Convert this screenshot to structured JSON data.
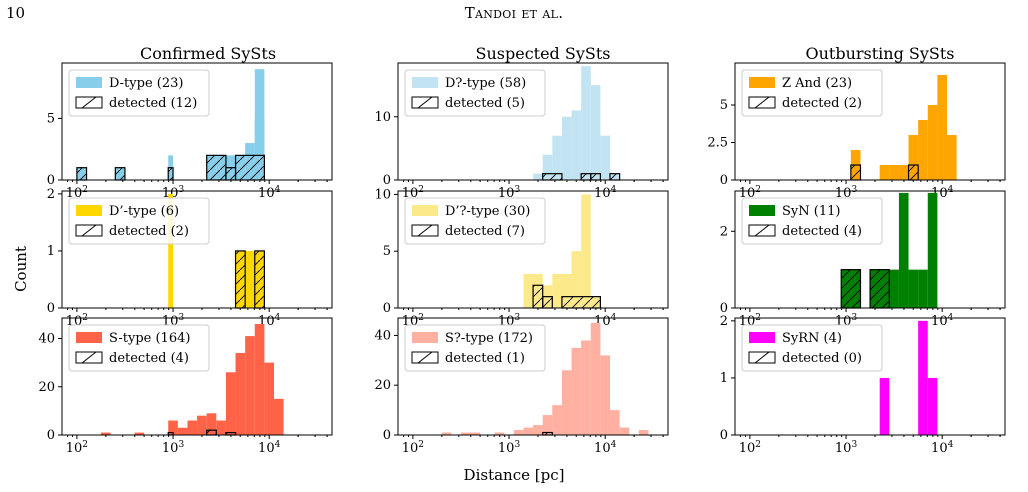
{
  "header": {
    "page_number": "10",
    "running_title": "Tandoi et al."
  },
  "figure": {
    "column_titles": [
      "Confirmed SySts",
      "Suspected SySts",
      "Outbursting SySts"
    ],
    "y_label": "Count",
    "x_label": "Distance [pc]"
  },
  "chart_data": [
    {
      "type": "bar",
      "panel": "Confirmed SySts / row 1",
      "xscale": "log",
      "xlim": [
        70,
        45000
      ],
      "ylim": [
        0,
        9.5
      ],
      "yticks": [
        0,
        5
      ],
      "xticks": [
        100,
        1000,
        10000
      ],
      "series": [
        {
          "name": "D-type (23)",
          "color": "#87ceeb",
          "bins": [
            [
              100,
              126,
              1
            ],
            [
              251,
              316,
              1
            ],
            [
              891,
              1000,
              1
            ],
            [
              891,
              1000,
              2
            ],
            [
              2239,
              2818,
              2
            ],
            [
              2818,
              3548,
              2
            ],
            [
              3548,
              4467,
              2
            ],
            [
              4467,
              5623,
              2
            ],
            [
              5623,
              7079,
              3
            ],
            [
              7079,
              8913,
              5
            ],
            [
              7079,
              8913,
              9
            ]
          ]
        },
        {
          "name": "detected (12)",
          "color": "none",
          "hatch": true,
          "bins": [
            [
              100,
              126,
              1
            ],
            [
              251,
              316,
              1
            ],
            [
              891,
              1000,
              1
            ],
            [
              2239,
              3548,
              2
            ],
            [
              3548,
              4467,
              1
            ],
            [
              4467,
              8913,
              2
            ]
          ]
        }
      ]
    },
    {
      "type": "bar",
      "panel": "Suspected SySts / row 1",
      "xscale": "log",
      "xlim": [
        70,
        45000
      ],
      "ylim": [
        0,
        18.5
      ],
      "yticks": [
        0,
        10
      ],
      "xticks": [
        100,
        1000,
        10000
      ],
      "series": [
        {
          "name": "D?-type (58)",
          "color": "#c2e4f2",
          "bins": [
            [
              1778,
              2239,
              1
            ],
            [
              2239,
              2818,
              4
            ],
            [
              2818,
              3548,
              7
            ],
            [
              3548,
              4467,
              10
            ],
            [
              4467,
              5623,
              11
            ],
            [
              5623,
              7079,
              18
            ],
            [
              7079,
              8913,
              15
            ],
            [
              8913,
              11220,
              7
            ],
            [
              11220,
              14125,
              1
            ]
          ]
        },
        {
          "name": "detected (5)",
          "color": "none",
          "hatch": true,
          "bins": [
            [
              2239,
              3548,
              1
            ],
            [
              5623,
              7079,
              1
            ],
            [
              7079,
              8913,
              1
            ],
            [
              11220,
              14125,
              1
            ]
          ]
        }
      ]
    },
    {
      "type": "bar",
      "panel": "Outbursting SySts / row 1",
      "xscale": "log",
      "xlim": [
        70,
        45000
      ],
      "ylim": [
        0,
        7.8
      ],
      "yticks": [
        0.0,
        2.5,
        5.0
      ],
      "xticks": [
        100,
        1000,
        10000
      ],
      "series": [
        {
          "name": "Z And (23)",
          "color": "#ffa500",
          "bins": [
            [
              1122,
              1413,
              2
            ],
            [
              2239,
              2818,
              1
            ],
            [
              2818,
              3548,
              1
            ],
            [
              3548,
              4467,
              1
            ],
            [
              4467,
              5623,
              3
            ],
            [
              5623,
              7079,
              4
            ],
            [
              7079,
              8913,
              5
            ],
            [
              8913,
              11220,
              7
            ],
            [
              11220,
              14125,
              3
            ]
          ]
        },
        {
          "name": "detected (2)",
          "color": "none",
          "hatch": true,
          "bins": [
            [
              1122,
              1413,
              1
            ],
            [
              4467,
              5623,
              1
            ]
          ]
        }
      ]
    },
    {
      "type": "bar",
      "panel": "Confirmed SySts / row 2",
      "xscale": "log",
      "xlim": [
        70,
        45000
      ],
      "ylim": [
        0,
        2.05
      ],
      "yticks": [
        0,
        1,
        2
      ],
      "xticks": [
        100,
        1000,
        10000
      ],
      "series": [
        {
          "name": "D’-type (6)",
          "color": "#ffd700",
          "bins": [
            [
              891,
              1000,
              2
            ],
            [
              4467,
              5623,
              1
            ],
            [
              5623,
              7079,
              1
            ],
            [
              7079,
              8913,
              1
            ]
          ]
        },
        {
          "name": "detected (2)",
          "color": "none",
          "hatch": true,
          "bins": [
            [
              4467,
              5623,
              1
            ],
            [
              7079,
              8913,
              1
            ]
          ]
        }
      ]
    },
    {
      "type": "bar",
      "panel": "Suspected SySts / row 2",
      "xscale": "log",
      "xlim": [
        70,
        45000
      ],
      "ylim": [
        0,
        10.3
      ],
      "yticks": [
        0,
        5,
        10
      ],
      "xticks": [
        100,
        1000,
        10000
      ],
      "series": [
        {
          "name": "D’?-type (30)",
          "color": "#fce98a",
          "bins": [
            [
              1413,
              1778,
              3
            ],
            [
              1778,
              2239,
              3
            ],
            [
              2239,
              2818,
              2
            ],
            [
              2818,
              3548,
              3
            ],
            [
              3548,
              4467,
              3
            ],
            [
              4467,
              5623,
              5
            ],
            [
              5623,
              7079,
              10
            ],
            [
              7079,
              8913,
              1
            ]
          ]
        },
        {
          "name": "detected (7)",
          "color": "none",
          "hatch": true,
          "bins": [
            [
              1778,
              2239,
              2
            ],
            [
              2239,
              2818,
              1
            ],
            [
              3548,
              8913,
              1
            ]
          ]
        }
      ]
    },
    {
      "type": "bar",
      "panel": "Outbursting SySts / row 2",
      "xscale": "log",
      "xlim": [
        70,
        45000
      ],
      "ylim": [
        0,
        3.05
      ],
      "yticks": [
        0,
        2
      ],
      "xticks": [
        100,
        1000,
        10000
      ],
      "series": [
        {
          "name": "SyN (11)",
          "color": "#008000",
          "bins": [
            [
              891,
              1413,
              1
            ],
            [
              1778,
              2818,
              1
            ],
            [
              2818,
              3548,
              1
            ],
            [
              3548,
              4467,
              3
            ],
            [
              4467,
              5623,
              1
            ],
            [
              5623,
              7079,
              1
            ],
            [
              7079,
              8913,
              3
            ]
          ]
        },
        {
          "name": "detected (4)",
          "color": "none",
          "hatch": true,
          "bins": [
            [
              891,
              1413,
              1
            ],
            [
              1778,
              2818,
              1
            ]
          ]
        }
      ]
    },
    {
      "type": "bar",
      "panel": "Confirmed SySts / row 3",
      "xscale": "log",
      "xlim": [
        70,
        45000
      ],
      "ylim": [
        0,
        48.5
      ],
      "yticks": [
        0,
        20,
        40
      ],
      "xticks": [
        100,
        1000,
        10000
      ],
      "series": [
        {
          "name": "S-type (164)",
          "color": "#ff6347",
          "bins": [
            [
              178,
              224,
              1
            ],
            [
              398,
              501,
              1
            ],
            [
              891,
              1122,
              6
            ],
            [
              1122,
              1413,
              3
            ],
            [
              1413,
              1778,
              6
            ],
            [
              1778,
              2239,
              8
            ],
            [
              2239,
              2818,
              9
            ],
            [
              2818,
              3548,
              6
            ],
            [
              3548,
              4467,
              26
            ],
            [
              4467,
              5623,
              34
            ],
            [
              5623,
              7079,
              41
            ],
            [
              7079,
              8913,
              46
            ],
            [
              8913,
              11220,
              30
            ],
            [
              11220,
              14125,
              15
            ]
          ]
        },
        {
          "name": "detected (4)",
          "color": "none",
          "hatch": true,
          "bins": [
            [
              891,
              1000,
              1
            ],
            [
              2239,
              2818,
              2
            ],
            [
              3548,
              4467,
              1
            ]
          ]
        }
      ]
    },
    {
      "type": "bar",
      "panel": "Suspected SySts / row 3",
      "xscale": "log",
      "xlim": [
        70,
        45000
      ],
      "ylim": [
        0,
        47
      ],
      "yticks": [
        0,
        20,
        40
      ],
      "xticks": [
        100,
        1000,
        10000
      ],
      "series": [
        {
          "name": "S?-type (172)",
          "color": "#ffb0a0",
          "bins": [
            [
              200,
              251,
              1
            ],
            [
              316,
              398,
              1
            ],
            [
              398,
              501,
              1
            ],
            [
              708,
              891,
              1
            ],
            [
              1122,
              1413,
              2
            ],
            [
              1413,
              1778,
              3
            ],
            [
              1778,
              2239,
              4
            ],
            [
              2239,
              2818,
              8
            ],
            [
              2818,
              3548,
              12
            ],
            [
              3548,
              4467,
              26
            ],
            [
              4467,
              5623,
              35
            ],
            [
              5623,
              7079,
              38
            ],
            [
              7079,
              8913,
              45
            ],
            [
              8913,
              11220,
              32
            ],
            [
              11220,
              14125,
              10
            ],
            [
              14125,
              17783,
              3
            ],
            [
              22387,
              28184,
              2
            ]
          ]
        },
        {
          "name": "detected (1)",
          "color": "none",
          "hatch": true,
          "bins": [
            [
              2239,
              2818,
              1
            ]
          ]
        }
      ]
    },
    {
      "type": "bar",
      "panel": "Outbursting SySts / row 3",
      "xscale": "log",
      "xlim": [
        70,
        45000
      ],
      "ylim": [
        0,
        2.05
      ],
      "yticks": [
        0,
        1,
        2
      ],
      "xticks": [
        100,
        1000,
        10000
      ],
      "series": [
        {
          "name": "SyRN (4)",
          "color": "#ff00ff",
          "bins": [
            [
              2239,
              2818,
              1
            ],
            [
              5623,
              7079,
              2
            ],
            [
              7079,
              8913,
              1
            ]
          ]
        },
        {
          "name": "detected (0)",
          "color": "none",
          "hatch": true,
          "bins": []
        }
      ]
    }
  ]
}
